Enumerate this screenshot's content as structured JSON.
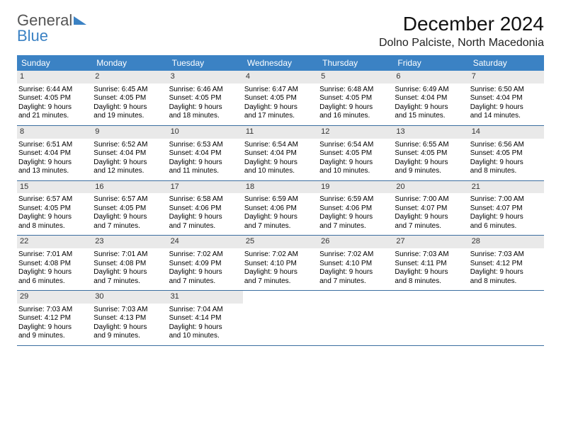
{
  "brand": {
    "line1": "General",
    "line2": "Blue"
  },
  "title": "December 2024",
  "location": "Dolno Palciste, North Macedonia",
  "header_bg": "#3b82c4",
  "dow": [
    "Sunday",
    "Monday",
    "Tuesday",
    "Wednesday",
    "Thursday",
    "Friday",
    "Saturday"
  ],
  "day_bg": "#e9e9e9",
  "rule_color": "#3b6ea0",
  "font_family": "Arial",
  "days": [
    {
      "n": "1",
      "sr": "6:44 AM",
      "ss": "4:05 PM",
      "dl": "9 hours and 21 minutes."
    },
    {
      "n": "2",
      "sr": "6:45 AM",
      "ss": "4:05 PM",
      "dl": "9 hours and 19 minutes."
    },
    {
      "n": "3",
      "sr": "6:46 AM",
      "ss": "4:05 PM",
      "dl": "9 hours and 18 minutes."
    },
    {
      "n": "4",
      "sr": "6:47 AM",
      "ss": "4:05 PM",
      "dl": "9 hours and 17 minutes."
    },
    {
      "n": "5",
      "sr": "6:48 AM",
      "ss": "4:05 PM",
      "dl": "9 hours and 16 minutes."
    },
    {
      "n": "6",
      "sr": "6:49 AM",
      "ss": "4:04 PM",
      "dl": "9 hours and 15 minutes."
    },
    {
      "n": "7",
      "sr": "6:50 AM",
      "ss": "4:04 PM",
      "dl": "9 hours and 14 minutes."
    },
    {
      "n": "8",
      "sr": "6:51 AM",
      "ss": "4:04 PM",
      "dl": "9 hours and 13 minutes."
    },
    {
      "n": "9",
      "sr": "6:52 AM",
      "ss": "4:04 PM",
      "dl": "9 hours and 12 minutes."
    },
    {
      "n": "10",
      "sr": "6:53 AM",
      "ss": "4:04 PM",
      "dl": "9 hours and 11 minutes."
    },
    {
      "n": "11",
      "sr": "6:54 AM",
      "ss": "4:04 PM",
      "dl": "9 hours and 10 minutes."
    },
    {
      "n": "12",
      "sr": "6:54 AM",
      "ss": "4:05 PM",
      "dl": "9 hours and 10 minutes."
    },
    {
      "n": "13",
      "sr": "6:55 AM",
      "ss": "4:05 PM",
      "dl": "9 hours and 9 minutes."
    },
    {
      "n": "14",
      "sr": "6:56 AM",
      "ss": "4:05 PM",
      "dl": "9 hours and 8 minutes."
    },
    {
      "n": "15",
      "sr": "6:57 AM",
      "ss": "4:05 PM",
      "dl": "9 hours and 8 minutes."
    },
    {
      "n": "16",
      "sr": "6:57 AM",
      "ss": "4:05 PM",
      "dl": "9 hours and 7 minutes."
    },
    {
      "n": "17",
      "sr": "6:58 AM",
      "ss": "4:06 PM",
      "dl": "9 hours and 7 minutes."
    },
    {
      "n": "18",
      "sr": "6:59 AM",
      "ss": "4:06 PM",
      "dl": "9 hours and 7 minutes."
    },
    {
      "n": "19",
      "sr": "6:59 AM",
      "ss": "4:06 PM",
      "dl": "9 hours and 7 minutes."
    },
    {
      "n": "20",
      "sr": "7:00 AM",
      "ss": "4:07 PM",
      "dl": "9 hours and 7 minutes."
    },
    {
      "n": "21",
      "sr": "7:00 AM",
      "ss": "4:07 PM",
      "dl": "9 hours and 6 minutes."
    },
    {
      "n": "22",
      "sr": "7:01 AM",
      "ss": "4:08 PM",
      "dl": "9 hours and 6 minutes."
    },
    {
      "n": "23",
      "sr": "7:01 AM",
      "ss": "4:08 PM",
      "dl": "9 hours and 7 minutes."
    },
    {
      "n": "24",
      "sr": "7:02 AM",
      "ss": "4:09 PM",
      "dl": "9 hours and 7 minutes."
    },
    {
      "n": "25",
      "sr": "7:02 AM",
      "ss": "4:10 PM",
      "dl": "9 hours and 7 minutes."
    },
    {
      "n": "26",
      "sr": "7:02 AM",
      "ss": "4:10 PM",
      "dl": "9 hours and 7 minutes."
    },
    {
      "n": "27",
      "sr": "7:03 AM",
      "ss": "4:11 PM",
      "dl": "9 hours and 8 minutes."
    },
    {
      "n": "28",
      "sr": "7:03 AM",
      "ss": "4:12 PM",
      "dl": "9 hours and 8 minutes."
    },
    {
      "n": "29",
      "sr": "7:03 AM",
      "ss": "4:12 PM",
      "dl": "9 hours and 9 minutes."
    },
    {
      "n": "30",
      "sr": "7:03 AM",
      "ss": "4:13 PM",
      "dl": "9 hours and 9 minutes."
    },
    {
      "n": "31",
      "sr": "7:04 AM",
      "ss": "4:14 PM",
      "dl": "9 hours and 10 minutes."
    }
  ],
  "labels": {
    "sunrise": "Sunrise:",
    "sunset": "Sunset:",
    "daylight": "Daylight:"
  }
}
